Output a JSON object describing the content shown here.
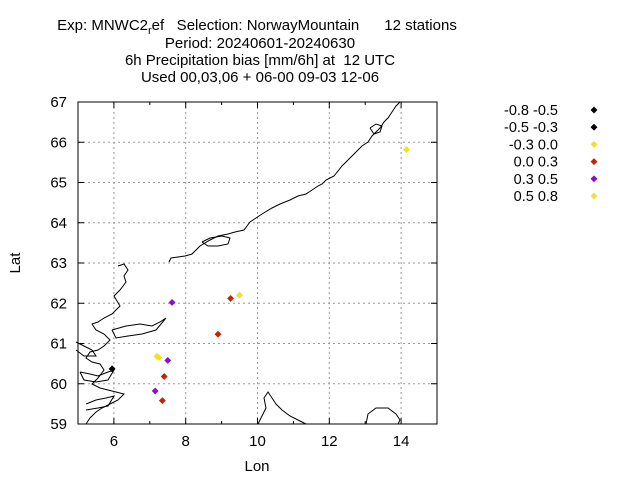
{
  "header": {
    "exp_line_prefix": "Exp: MNWC2",
    "exp_line_sub": "r",
    "exp_line_suffix": "ef   Selection: NorwayMountain      12 stations",
    "period_line": "Period: 20240601-20240630",
    "metric_line": "6h Precipitation bias [mm/6h] at  12 UTC",
    "used_line": "Used 00,03,06 + 06-00 09-03 12-06"
  },
  "chart_data": {
    "type": "scatter",
    "xlabel": "Lon",
    "ylabel": "Lat",
    "xlim": [
      5,
      15
    ],
    "ylim": [
      59,
      67
    ],
    "xticks": [
      6,
      8,
      10,
      12,
      14
    ],
    "yticks": [
      59,
      60,
      61,
      62,
      63,
      64,
      65,
      66,
      67
    ],
    "grid": true,
    "legend_position": "right",
    "legend": [
      {
        "label": "-0.8 -0.5",
        "color": "#000000"
      },
      {
        "label": "-0.5 -0.3",
        "color": "#000000"
      },
      {
        "label": "-0.3 0.0",
        "color": "#f0e030"
      },
      {
        "label": "0.0 0.3",
        "color": "#cc2200"
      },
      {
        "label": "0.3 0.5",
        "color": "#8a10d0"
      },
      {
        "label": "0.5 0.8",
        "color": "#f0e030"
      }
    ],
    "points": [
      {
        "lon": 5.95,
        "lat": 60.37,
        "bin": 1
      },
      {
        "lon": 7.2,
        "lat": 60.68,
        "bin": 2
      },
      {
        "lon": 7.25,
        "lat": 60.65,
        "bin": 5
      },
      {
        "lon": 7.5,
        "lat": 60.58,
        "bin": 4
      },
      {
        "lon": 7.4,
        "lat": 60.18,
        "bin": 3
      },
      {
        "lon": 7.15,
        "lat": 59.82,
        "bin": 4
      },
      {
        "lon": 7.35,
        "lat": 59.58,
        "bin": 3
      },
      {
        "lon": 7.62,
        "lat": 62.02,
        "bin": 4
      },
      {
        "lon": 8.9,
        "lat": 61.23,
        "bin": 3
      },
      {
        "lon": 9.25,
        "lat": 62.12,
        "bin": 3
      },
      {
        "lon": 9.5,
        "lat": 62.2,
        "bin": 5
      },
      {
        "lon": 14.15,
        "lat": 65.82,
        "bin": 2
      }
    ]
  }
}
